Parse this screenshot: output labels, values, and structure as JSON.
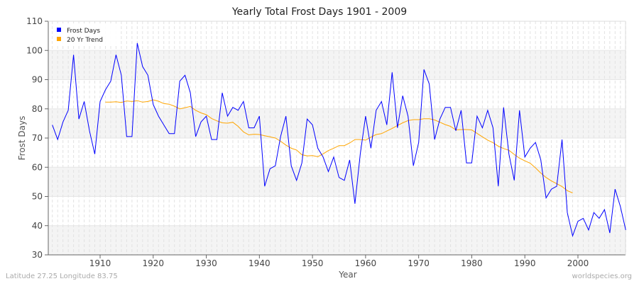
{
  "chart_data": {
    "type": "line",
    "title": "Yearly Total Frost Days 1901 - 2009",
    "xlabel": "Year",
    "ylabel": "Frost Days",
    "xlim": [
      1901,
      2009
    ],
    "ylim": [
      30,
      110
    ],
    "xticks": [
      1910,
      1920,
      1930,
      1940,
      1950,
      1960,
      1970,
      1980,
      1990,
      2000
    ],
    "yticks": [
      30,
      40,
      50,
      60,
      70,
      80,
      90,
      100,
      110
    ],
    "grid": true,
    "legend_position": "top-left",
    "series": [
      {
        "name": "Frost Days",
        "color": "#0000ff",
        "x_start": 1901,
        "values": [
          74.5,
          69.5,
          75.5,
          79.5,
          98.5,
          76.5,
          82.5,
          72.5,
          64.5,
          82.5,
          86.5,
          89.5,
          98.5,
          91.5,
          70.5,
          70.5,
          102.5,
          94.5,
          91.5,
          81.5,
          77.5,
          74.5,
          71.5,
          71.5,
          89.5,
          91.5,
          85.5,
          70.5,
          75.5,
          77.5,
          69.5,
          69.5,
          85.5,
          77.5,
          80.5,
          79.5,
          82.5,
          73.5,
          73.5,
          77.5,
          53.5,
          59.5,
          60.5,
          70.5,
          77.5,
          60.5,
          55.5,
          61.5,
          76.5,
          74.5,
          66.5,
          63.5,
          58.5,
          63.5,
          56.5,
          55.5,
          62.5,
          47.5,
          64.5,
          77.5,
          66.5,
          79.5,
          82.5,
          74.5,
          92.5,
          73.5,
          84.5,
          77.5,
          60.5,
          68.5,
          93.5,
          88.5,
          69.5,
          76.5,
          80.5,
          80.5,
          72.5,
          79.5,
          61.5,
          61.5,
          77.5,
          73.5,
          79.5,
          73.5,
          53.5,
          80.5,
          64.5,
          55.5,
          79.5,
          63.5,
          66.5,
          68.5,
          62.5,
          49.5,
          52.5,
          53.5,
          69.5,
          44.5,
          36.5,
          41.5,
          42.5,
          38.5,
          44.5,
          42.5,
          45.5,
          37.5,
          52.5,
          46.5,
          38.5
        ]
      },
      {
        "name": "20 Yr Trend",
        "color": "#ffa500",
        "x_start": 1911,
        "values": [
          82.3,
          82.3,
          82.4,
          82.2,
          82.7,
          82.5,
          82.8,
          82.3,
          82.5,
          83.1,
          82.6,
          81.8,
          81.6,
          80.9,
          80.0,
          80.4,
          80.8,
          79.5,
          78.6,
          78.0,
          76.7,
          75.9,
          75.2,
          75.1,
          75.4,
          74.0,
          72.1,
          71.1,
          71.3,
          71.2,
          70.8,
          70.4,
          70.0,
          68.9,
          67.6,
          66.5,
          65.9,
          64.3,
          63.9,
          64.0,
          63.6,
          64.6,
          65.7,
          66.5,
          67.4,
          67.4,
          68.3,
          69.5,
          69.5,
          69.3,
          70.3,
          71.2,
          71.5,
          72.4,
          73.3,
          74.3,
          75.2,
          76.0,
          76.3,
          76.3,
          76.6,
          76.6,
          76.2,
          75.4,
          74.6,
          74.0,
          72.8,
          72.9,
          72.9,
          72.8,
          71.6,
          70.4,
          69.3,
          68.4,
          67.2,
          66.4,
          65.8,
          64.4,
          63.1,
          62.2,
          61.4,
          59.8,
          58.0,
          56.5,
          55.3,
          54.4,
          53.4,
          52.0,
          51.2
        ]
      }
    ]
  },
  "footer": {
    "location": "Latitude 27.25 Longitude 83.75",
    "source": "worldspecies.org"
  }
}
